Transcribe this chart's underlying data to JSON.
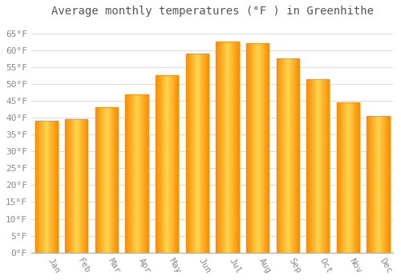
{
  "title": "Average monthly temperatures (°F ) in Greenhithe",
  "months": [
    "Jan",
    "Feb",
    "Mar",
    "Apr",
    "May",
    "Jun",
    "Jul",
    "Aug",
    "Sep",
    "Oct",
    "Nov",
    "Dec"
  ],
  "values": [
    39,
    39.5,
    43,
    47,
    52.5,
    59,
    62.5,
    62,
    57.5,
    51.5,
    44.5,
    40.5
  ],
  "bar_color_light": "#FFD54F",
  "bar_color_main": "#FFA726",
  "bar_color_dark": "#FB8C00",
  "background_color": "#FFFFFF",
  "grid_color": "#DDDDDD",
  "text_color": "#888888",
  "title_color": "#555555",
  "ylim": [
    0,
    68
  ],
  "yticks": [
    0,
    5,
    10,
    15,
    20,
    25,
    30,
    35,
    40,
    45,
    50,
    55,
    60,
    65
  ],
  "ytick_labels": [
    "0°F",
    "5°F",
    "10°F",
    "15°F",
    "20°F",
    "25°F",
    "30°F",
    "35°F",
    "40°F",
    "45°F",
    "50°F",
    "55°F",
    "60°F",
    "65°F"
  ],
  "title_fontsize": 10,
  "tick_fontsize": 8,
  "figsize": [
    5.0,
    3.5
  ],
  "dpi": 100
}
